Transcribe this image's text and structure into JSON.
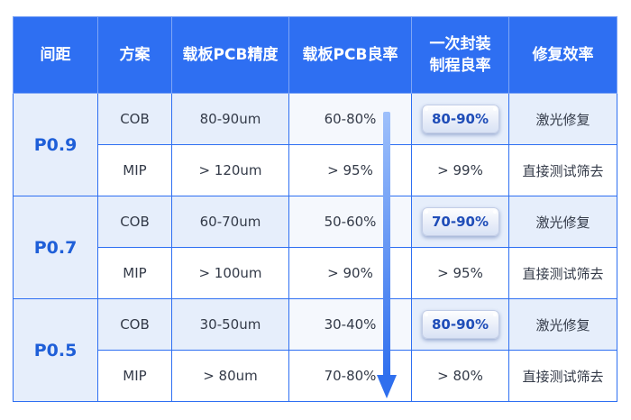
{
  "header": {
    "col_pitch": "间距",
    "col_scheme": "方案",
    "col_pcb_precision": "载板PCB精度",
    "col_pcb_yield": "载板PCB良率",
    "col_pack_yield_line1": "一次封装",
    "col_pack_yield_line2": "制程良率",
    "col_repair": "修复效率"
  },
  "groups": [
    {
      "pitch": "P0.9",
      "rows": [
        {
          "scheme": "COB",
          "precision": "80-90um",
          "pcb_yield": "60-80%",
          "pack_yield": "80-90%",
          "repair": "激光修复"
        },
        {
          "scheme": "MIP",
          "precision": "> 120um",
          "pcb_yield": "> 95%",
          "pack_yield": "> 99%",
          "repair": "直接测试筛去"
        }
      ]
    },
    {
      "pitch": "P0.7",
      "rows": [
        {
          "scheme": "COB",
          "precision": "60-70um",
          "pcb_yield": "50-60%",
          "pack_yield": "70-90%",
          "repair": "激光修复"
        },
        {
          "scheme": "MIP",
          "precision": "> 100um",
          "pcb_yield": "> 90%",
          "pack_yield": "> 95%",
          "repair": "直接测试筛去"
        }
      ]
    },
    {
      "pitch": "P0.5",
      "rows": [
        {
          "scheme": "COB",
          "precision": "30-50um",
          "pcb_yield": "30-40%",
          "pack_yield": "80-90%",
          "repair": "激光修复"
        },
        {
          "scheme": "MIP",
          "precision": "> 80um",
          "pcb_yield": "70-80%",
          "pack_yield": "> 80%",
          "repair": "直接测试筛去"
        }
      ]
    }
  ],
  "colors": {
    "header_bg": "#2e6ff2",
    "accent_text": "#1f5fd8",
    "shade_bg": "#e6eefb",
    "arrow": "#3a7cf0"
  },
  "decor": {
    "arrow_icon": "down-arrow-icon"
  }
}
